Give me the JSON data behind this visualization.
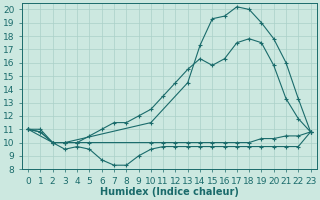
{
  "xlabel": "Humidex (Indice chaleur)",
  "xlim": [
    -0.5,
    23.5
  ],
  "ylim": [
    8,
    20.5
  ],
  "xticks": [
    0,
    1,
    2,
    3,
    4,
    5,
    6,
    7,
    8,
    9,
    10,
    11,
    12,
    13,
    14,
    15,
    16,
    17,
    18,
    19,
    20,
    21,
    22,
    23
  ],
  "yticks": [
    8,
    9,
    10,
    11,
    12,
    13,
    14,
    15,
    16,
    17,
    18,
    19,
    20
  ],
  "bg_color": "#cce8e0",
  "grid_color": "#aad0c8",
  "line_color": "#1a6b6b",
  "series": [
    {
      "x": [
        0,
        1,
        2,
        3,
        4,
        5,
        10,
        11,
        12,
        13,
        14,
        15,
        16,
        17,
        18,
        19,
        20,
        21,
        22,
        23
      ],
      "y": [
        11.0,
        10.8,
        10.0,
        10.0,
        10.0,
        10.0,
        10.0,
        10.0,
        10.0,
        10.0,
        10.0,
        10.0,
        10.0,
        10.0,
        10.0,
        10.3,
        10.3,
        10.5,
        10.5,
        10.8
      ]
    },
    {
      "x": [
        0,
        1,
        2,
        3,
        4,
        5,
        6,
        7,
        8,
        9,
        10,
        11,
        12,
        13,
        14,
        15,
        16,
        17,
        18,
        19,
        20,
        21,
        22,
        23
      ],
      "y": [
        11.0,
        10.8,
        10.0,
        9.5,
        9.7,
        9.5,
        8.7,
        8.3,
        8.3,
        9.0,
        9.5,
        9.7,
        9.7,
        9.7,
        9.7,
        9.7,
        9.7,
        9.7,
        9.7,
        9.7,
        9.7,
        9.7,
        9.7,
        10.8
      ]
    },
    {
      "x": [
        0,
        1,
        2,
        3,
        4,
        5,
        6,
        7,
        8,
        9,
        10,
        11,
        12,
        13,
        14,
        15,
        16,
        17,
        18,
        19,
        20,
        21,
        22,
        23
      ],
      "y": [
        11.0,
        11.0,
        10.0,
        10.0,
        10.0,
        10.5,
        11.0,
        11.5,
        11.5,
        12.0,
        12.5,
        13.5,
        14.5,
        15.5,
        16.3,
        15.8,
        16.3,
        17.5,
        17.8,
        17.5,
        15.8,
        13.3,
        11.8,
        10.8
      ]
    },
    {
      "x": [
        0,
        2,
        3,
        10,
        13,
        14,
        15,
        16,
        17,
        18,
        19,
        20,
        21,
        22,
        23
      ],
      "y": [
        11.0,
        10.0,
        10.0,
        11.5,
        14.5,
        17.3,
        19.3,
        19.5,
        20.2,
        20.0,
        19.0,
        17.8,
        16.0,
        13.3,
        10.8
      ]
    }
  ],
  "font_size_xlabel": 7.0,
  "font_size_ticks": 6.5
}
